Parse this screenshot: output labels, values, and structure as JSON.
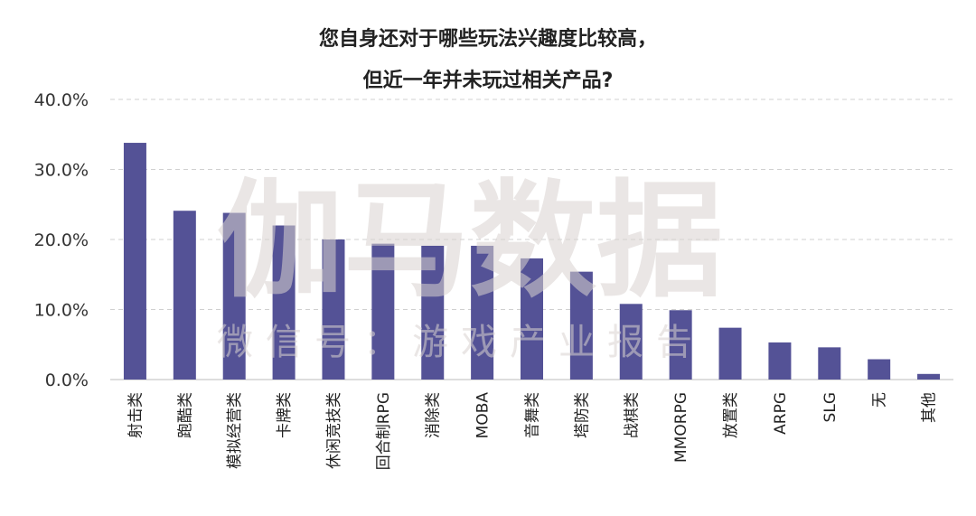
{
  "watermark": {
    "main": "伽马数据",
    "sub": "微信号：游戏产业报告"
  },
  "colors": {
    "bar": "#545296",
    "grid": "#d0d0d0"
  },
  "chart_data": {
    "type": "bar",
    "title": "您自身还对于哪些玩法兴趣度比较高，",
    "subtitle": "但近一年并未玩过相关产品?",
    "xlabel": "",
    "ylabel": "",
    "ylim": [
      0,
      40
    ],
    "yticks": [
      "40.0%",
      "30.0%",
      "20.0%",
      "10.0%",
      "0.0%"
    ],
    "ytick_values": [
      40,
      30,
      20,
      10,
      0
    ],
    "grid": true,
    "legend": "none",
    "categories": [
      "射击类",
      "跑酷类",
      "模拟经营类",
      "卡牌类",
      "休闲竞技类",
      "回合制RPG",
      "消除类",
      "MOBA",
      "音舞类",
      "塔防类",
      "战棋类",
      "MMORPG",
      "放置类",
      "ARPG",
      "SLG",
      "无",
      "其他"
    ],
    "values": [
      33.8,
      24.1,
      23.8,
      22.0,
      20.0,
      19.4,
      19.1,
      19.1,
      17.3,
      15.4,
      10.8,
      9.9,
      7.4,
      5.3,
      4.6,
      2.9,
      0.8
    ]
  }
}
